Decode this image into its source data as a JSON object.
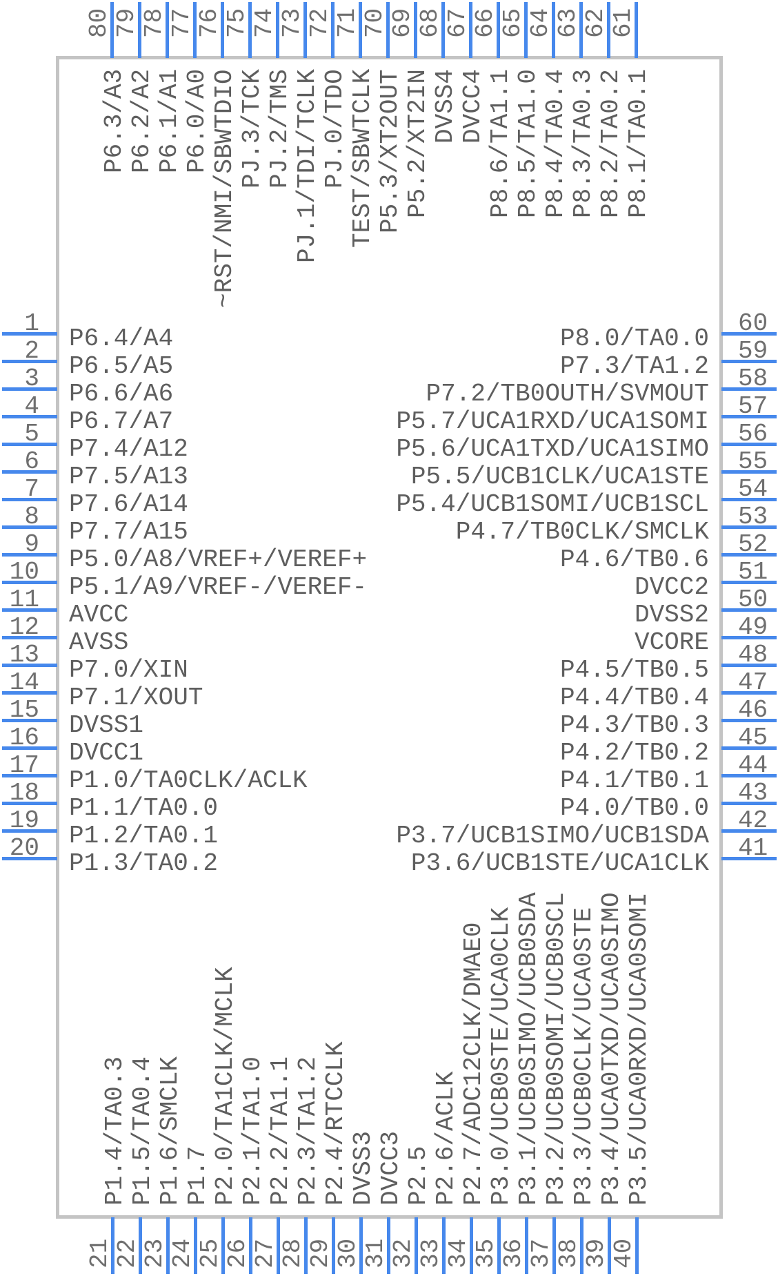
{
  "diagram": {
    "type": "ic-pinout-symbol",
    "pin_count": 80,
    "sides": [
      "top",
      "left",
      "right",
      "bottom"
    ]
  },
  "colors": {
    "pin_line": "#4688ec",
    "body_border": "#c4c4c4",
    "pin_number": "#6f6f6f",
    "pin_label": "#5e5e5e",
    "background": "#ffffff"
  },
  "pins": {
    "top": [
      {
        "number": "80",
        "label": "P6.3/A3"
      },
      {
        "number": "79",
        "label": "P6.2/A2"
      },
      {
        "number": "78",
        "label": "P6.1/A1"
      },
      {
        "number": "77",
        "label": "P6.0/A0"
      },
      {
        "number": "76",
        "label": "~RST/NMI/SBWTDIO"
      },
      {
        "number": "75",
        "label": "PJ.3/TCK"
      },
      {
        "number": "74",
        "label": "PJ.2/TMS"
      },
      {
        "number": "73",
        "label": "PJ.1/TDI/TCLK"
      },
      {
        "number": "72",
        "label": "PJ.0/TDO"
      },
      {
        "number": "71",
        "label": "TEST/SBWTCLK"
      },
      {
        "number": "70",
        "label": "P5.3/XT2OUT"
      },
      {
        "number": "69",
        "label": "P5.2/XT2IN"
      },
      {
        "number": "68",
        "label": "DVSS4"
      },
      {
        "number": "67",
        "label": "DVCC4"
      },
      {
        "number": "66",
        "label": "P8.6/TA1.1"
      },
      {
        "number": "65",
        "label": "P8.5/TA1.0"
      },
      {
        "number": "64",
        "label": "P8.4/TA0.4"
      },
      {
        "number": "63",
        "label": "P8.3/TA0.3"
      },
      {
        "number": "62",
        "label": "P8.2/TA0.2"
      },
      {
        "number": "61",
        "label": "P8.1/TA0.1"
      }
    ],
    "left": [
      {
        "number": "1",
        "label": "P6.4/A4"
      },
      {
        "number": "2",
        "label": "P6.5/A5"
      },
      {
        "number": "3",
        "label": "P6.6/A6"
      },
      {
        "number": "4",
        "label": "P6.7/A7"
      },
      {
        "number": "5",
        "label": "P7.4/A12"
      },
      {
        "number": "6",
        "label": "P7.5/A13"
      },
      {
        "number": "7",
        "label": "P7.6/A14"
      },
      {
        "number": "8",
        "label": "P7.7/A15"
      },
      {
        "number": "9",
        "label": "P5.0/A8/VREF+/VEREF+"
      },
      {
        "number": "10",
        "label": "P5.1/A9/VREF-/VEREF-"
      },
      {
        "number": "11",
        "label": "AVCC"
      },
      {
        "number": "12",
        "label": "AVSS"
      },
      {
        "number": "13",
        "label": "P7.0/XIN"
      },
      {
        "number": "14",
        "label": "P7.1/XOUT"
      },
      {
        "number": "15",
        "label": "DVSS1"
      },
      {
        "number": "16",
        "label": "DVCC1"
      },
      {
        "number": "17",
        "label": "P1.0/TA0CLK/ACLK"
      },
      {
        "number": "18",
        "label": "P1.1/TA0.0"
      },
      {
        "number": "19",
        "label": "P1.2/TA0.1"
      },
      {
        "number": "20",
        "label": "P1.3/TA0.2"
      }
    ],
    "right": [
      {
        "number": "60",
        "label": "P8.0/TA0.0"
      },
      {
        "number": "59",
        "label": "P7.3/TA1.2"
      },
      {
        "number": "58",
        "label": "P7.2/TB0OUTH/SVMOUT"
      },
      {
        "number": "57",
        "label": "P5.7/UCA1RXD/UCA1SOMI"
      },
      {
        "number": "56",
        "label": "P5.6/UCA1TXD/UCA1SIMO"
      },
      {
        "number": "55",
        "label": "P5.5/UCB1CLK/UCA1STE"
      },
      {
        "number": "54",
        "label": "P5.4/UCB1SOMI/UCB1SCL"
      },
      {
        "number": "53",
        "label": "P4.7/TB0CLK/SMCLK"
      },
      {
        "number": "52",
        "label": "P4.6/TB0.6"
      },
      {
        "number": "51",
        "label": "DVCC2"
      },
      {
        "number": "50",
        "label": "DVSS2"
      },
      {
        "number": "49",
        "label": "VCORE"
      },
      {
        "number": "48",
        "label": "P4.5/TB0.5"
      },
      {
        "number": "47",
        "label": "P4.4/TB0.4"
      },
      {
        "number": "46",
        "label": "P4.3/TB0.3"
      },
      {
        "number": "45",
        "label": "P4.2/TB0.2"
      },
      {
        "number": "44",
        "label": "P4.1/TB0.1"
      },
      {
        "number": "43",
        "label": "P4.0/TB0.0"
      },
      {
        "number": "42",
        "label": "P3.7/UCB1SIMO/UCB1SDA"
      },
      {
        "number": "41",
        "label": "P3.6/UCB1STE/UCA1CLK"
      }
    ],
    "bottom": [
      {
        "number": "21",
        "label": "P1.4/TA0.3"
      },
      {
        "number": "22",
        "label": "P1.5/TA0.4"
      },
      {
        "number": "23",
        "label": "P1.6/SMCLK"
      },
      {
        "number": "24",
        "label": "P1.7"
      },
      {
        "number": "25",
        "label": "P2.0/TA1CLK/MCLK"
      },
      {
        "number": "26",
        "label": "P2.1/TA1.0"
      },
      {
        "number": "27",
        "label": "P2.2/TA1.1"
      },
      {
        "number": "28",
        "label": "P2.3/TA1.2"
      },
      {
        "number": "29",
        "label": "P2.4/RTCCLK"
      },
      {
        "number": "30",
        "label": "DVSS3"
      },
      {
        "number": "31",
        "label": "DVCC3"
      },
      {
        "number": "32",
        "label": "P2.5"
      },
      {
        "number": "33",
        "label": "P2.6/ACLK"
      },
      {
        "number": "34",
        "label": "P2.7/ADC12CLK/DMAE0"
      },
      {
        "number": "35",
        "label": "P3.0/UCB0STE/UCA0CLK"
      },
      {
        "number": "36",
        "label": "P3.1/UCB0SIMO/UCB0SDA"
      },
      {
        "number": "37",
        "label": "P3.2/UCB0SOMI/UCB0SCL"
      },
      {
        "number": "38",
        "label": "P3.3/UCB0CLK/UCA0STE"
      },
      {
        "number": "39",
        "label": "P3.4/UCA0TXD/UCA0SIMO"
      },
      {
        "number": "40",
        "label": "P3.5/UCA0RXD/UCA0SOMI"
      }
    ]
  }
}
